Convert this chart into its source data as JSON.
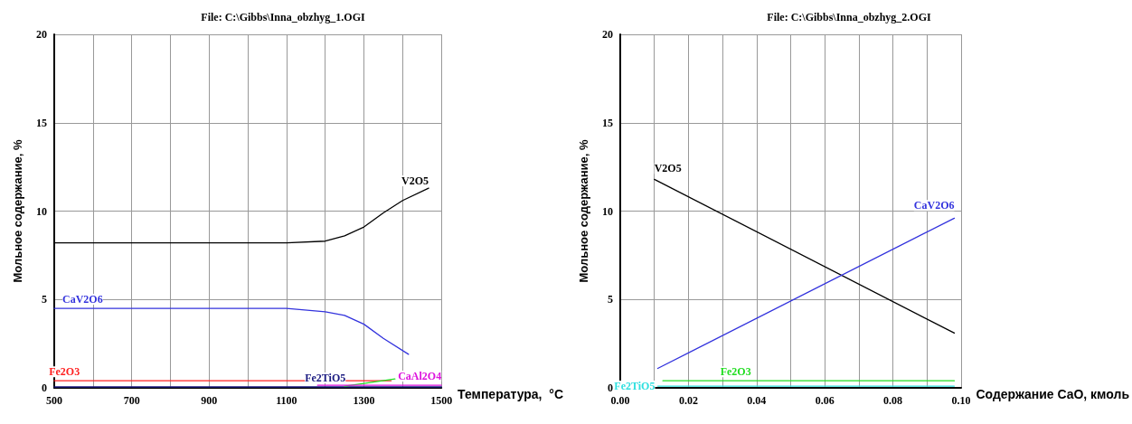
{
  "chart_data": [
    {
      "type": "line",
      "title": "File: C:\\Gibbs\\Inna_obzhyg_1.OGI",
      "xlabel": "Температура,  °C",
      "ylabel": "Мольное содержание, %",
      "xlim": [
        500,
        1500
      ],
      "ylim": [
        0,
        20
      ],
      "xticks": [
        500,
        {
          "value": 600,
          "label": null
        },
        700,
        {
          "value": 800,
          "label": null
        },
        900,
        {
          "value": 1000,
          "label": null
        },
        1100,
        {
          "value": 1200,
          "label": null
        },
        1300,
        {
          "value": 1400,
          "label": null
        },
        1500
      ],
      "yticks": [
        0,
        5,
        10,
        15,
        20
      ],
      "grid": true,
      "legend": false,
      "marker": "none",
      "line_style": "solid",
      "series": [
        {
          "name": "V2O5",
          "color": "#000000",
          "x": [
            500,
            1100,
            1200,
            1250,
            1300,
            1350,
            1400,
            1467
          ],
          "values": [
            8.2,
            8.2,
            8.3,
            8.6,
            9.1,
            9.9,
            10.6,
            11.3
          ]
        },
        {
          "name": "CaV2O6",
          "color": "#3333dd",
          "x": [
            500,
            1100,
            1200,
            1250,
            1300,
            1350,
            1415
          ],
          "values": [
            4.5,
            4.5,
            4.3,
            4.1,
            3.6,
            2.8,
            1.9
          ]
        },
        {
          "name": "Fe2O3",
          "color": "#ff2020",
          "x": [
            500,
            1370
          ],
          "values": [
            0.4,
            0.4
          ]
        },
        {
          "name": "Fe2TiO5",
          "color": "#1a1a80",
          "x": [
            500,
            1500
          ],
          "values": [
            0.05,
            0.05
          ]
        },
        {
          "color": "#20dd20",
          "x": [
            1250,
            1300,
            1380
          ],
          "values": [
            0.1,
            0.25,
            0.5
          ]
        },
        {
          "name": "CaAl2O4",
          "color": "#dd10dd",
          "x": [
            1180,
            1500
          ],
          "values": [
            0.15,
            0.15
          ]
        }
      ]
    },
    {
      "type": "line",
      "title": "File: C:\\Gibbs\\Inna_obzhyg_2.OGI",
      "xlabel": "Содержание CaO, кмоль",
      "ylabel": "Мольное содержание, %",
      "xlim": [
        0,
        0.1
      ],
      "ylim": [
        0,
        20
      ],
      "xticks": [
        {
          "value": 0,
          "label": "0.00"
        },
        {
          "value": 0.01,
          "label": null
        },
        {
          "value": 0.02,
          "label": "0.02"
        },
        {
          "value": 0.03,
          "label": null
        },
        {
          "value": 0.04,
          "label": "0.04"
        },
        {
          "value": 0.05,
          "label": null
        },
        {
          "value": 0.06,
          "label": "0.06"
        },
        {
          "value": 0.07,
          "label": null
        },
        {
          "value": 0.08,
          "label": "0.08"
        },
        {
          "value": 0.09,
          "label": null
        },
        {
          "value": 0.1,
          "label": "0.10"
        }
      ],
      "yticks": [
        0,
        5,
        10,
        15,
        20
      ],
      "grid": true,
      "legend": false,
      "marker": "none",
      "line_style": "solid",
      "series": [
        {
          "name": "V2O5",
          "color": "#000000",
          "x": [
            0.01,
            0.098
          ],
          "values": [
            11.8,
            3.1
          ]
        },
        {
          "name": "CaV2O6",
          "color": "#3333dd",
          "x": [
            0.011,
            0.098
          ],
          "values": [
            1.1,
            9.6
          ]
        },
        {
          "name": "Fe2O3",
          "color": "#20dd20",
          "x": [
            0.0125,
            0.098
          ],
          "values": [
            0.4,
            0.4
          ]
        },
        {
          "name": "Fe2TiO5",
          "color": "#30e0e0",
          "x": [
            0.011,
            0.098
          ],
          "values": [
            0.1,
            0.1
          ]
        }
      ]
    }
  ]
}
